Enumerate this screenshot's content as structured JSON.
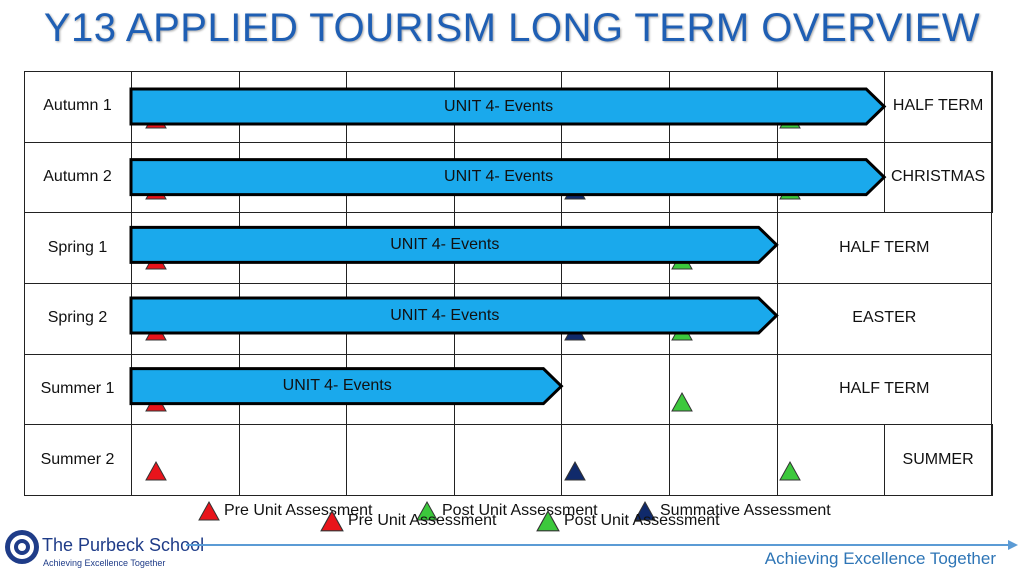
{
  "title": "Y13 APPLIED TOURISM LONG TERM OVERVIEW",
  "rows": [
    {
      "label": "Autumn 1",
      "holiday": "HALF TERM",
      "bar_label": "UNIT 4- Events",
      "bar_end_col": 7,
      "holiday_from_col": 8,
      "markers": [
        {
          "col": 0.13,
          "type": "pre"
        },
        {
          "col": 6.02,
          "type": "post"
        }
      ]
    },
    {
      "label": "Autumn 2",
      "holiday": "CHRISTMAS",
      "bar_label": "UNIT 4- Events",
      "bar_end_col": 7,
      "holiday_from_col": 8,
      "markers": [
        {
          "col": 0.13,
          "type": "pre"
        },
        {
          "col": 4.02,
          "type": "summative"
        },
        {
          "col": 6.02,
          "type": "post"
        }
      ]
    },
    {
      "label": "Spring 1",
      "holiday": "HALF TERM",
      "bar_label": "UNIT 4- Events",
      "bar_end_col": 6,
      "holiday_from_col": 6,
      "markers": [
        {
          "col": 0.13,
          "type": "pre"
        },
        {
          "col": 5.02,
          "type": "post"
        }
      ]
    },
    {
      "label": "Spring 2",
      "holiday": "EASTER",
      "bar_label": "UNIT 4- Events",
      "bar_end_col": 6,
      "holiday_from_col": 6,
      "markers": [
        {
          "col": 0.13,
          "type": "pre"
        },
        {
          "col": 4.02,
          "type": "summative"
        },
        {
          "col": 5.02,
          "type": "post"
        }
      ]
    },
    {
      "label": "Summer 1",
      "holiday": "HALF TERM",
      "bar_label": "UNIT 4- Events",
      "bar_end_col": 4,
      "holiday_from_col": 6,
      "markers": [
        {
          "col": 0.13,
          "type": "pre"
        },
        {
          "col": 5.02,
          "type": "post"
        }
      ]
    },
    {
      "label": "Summer 2",
      "holiday": "SUMMER",
      "bar_label": "",
      "bar_end_col": 0,
      "holiday_from_col": 8,
      "markers": [
        {
          "col": 0.13,
          "type": "pre"
        },
        {
          "col": 4.02,
          "type": "summative"
        },
        {
          "col": 6.02,
          "type": "post"
        }
      ]
    }
  ],
  "legend": [
    {
      "type": "pre",
      "label": "Pre Unit Assessment"
    },
    {
      "type": "post",
      "label": "Post Unit Assessment"
    },
    {
      "type": "summative",
      "label": "Summative Assessment"
    }
  ],
  "legend_ghost": [
    {
      "type": "pre",
      "label": "Pre Unit Assessment"
    },
    {
      "type": "post",
      "label": "Post Unit Assessment"
    }
  ],
  "marker_colors": {
    "pre": "#e8141b",
    "post": "#3cc83c",
    "summative": "#102a6b"
  },
  "bar_color": "#1aa9ec",
  "footer": {
    "school": "The Purbeck School",
    "school_sub": "Achieving Excellence Together",
    "tagline": "Achieving Excellence Together"
  }
}
